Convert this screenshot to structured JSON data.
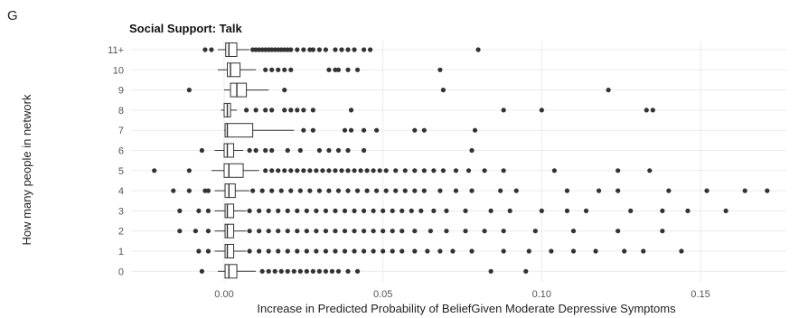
{
  "panel_letter": "G",
  "chart_data": {
    "type": "boxplot",
    "orientation": "horizontal",
    "title": "Social Support: Talk",
    "xlabel": "Increase in Predicted Probability of BeliefGiven Moderate Depressive Symptoms",
    "ylabel": "How many people in network",
    "xlim": [
      -0.025,
      0.175
    ],
    "xticks": [
      0.0,
      0.05,
      0.1,
      0.15
    ],
    "xtick_labels": [
      "0.00",
      "0.05",
      "0.10",
      "0.15"
    ],
    "grid": true,
    "categories": [
      "11+",
      "10",
      "9",
      "8",
      "7",
      "6",
      "5",
      "4",
      "3",
      "2",
      "1",
      "0"
    ],
    "boxes": [
      {
        "q1": 0.0005,
        "median": 0.0015,
        "q3": 0.004,
        "whisker_low": -0.002,
        "whisker_high": 0.008,
        "outliers": [
          -0.006,
          -0.004,
          0.009,
          0.01,
          0.011,
          0.012,
          0.013,
          0.014,
          0.015,
          0.016,
          0.017,
          0.018,
          0.019,
          0.02,
          0.021,
          0.023,
          0.025,
          0.027,
          0.028,
          0.03,
          0.032,
          0.035,
          0.037,
          0.039,
          0.041,
          0.044,
          0.046,
          0.08
        ]
      },
      {
        "q1": 0.001,
        "median": 0.002,
        "q3": 0.005,
        "whisker_low": -0.002,
        "whisker_high": 0.01,
        "outliers": [
          0.013,
          0.015,
          0.017,
          0.019,
          0.021,
          0.033,
          0.035,
          0.036,
          0.039,
          0.042,
          0.068
        ]
      },
      {
        "q1": 0.002,
        "median": 0.004,
        "q3": 0.007,
        "whisker_low": 0.0,
        "whisker_high": 0.014,
        "outliers": [
          -0.011,
          0.019,
          0.069,
          0.121
        ]
      },
      {
        "q1": 0.0,
        "median": 0.001,
        "q3": 0.002,
        "whisker_low": -0.001,
        "whisker_high": 0.004,
        "outliers": [
          0.007,
          0.01,
          0.013,
          0.015,
          0.019,
          0.021,
          0.023,
          0.025,
          0.028,
          0.04,
          0.088,
          0.1,
          0.133,
          0.135
        ]
      },
      {
        "q1": 0.0003,
        "median": 0.001,
        "q3": 0.009,
        "whisker_low": 0.0,
        "whisker_high": 0.022,
        "outliers": [
          0.025,
          0.028,
          0.038,
          0.04,
          0.044,
          0.048,
          0.06,
          0.063,
          0.079
        ]
      },
      {
        "q1": 0.0,
        "median": 0.001,
        "q3": 0.003,
        "whisker_low": -0.003,
        "whisker_high": 0.006,
        "outliers": [
          -0.007,
          0.008,
          0.01,
          0.013,
          0.015,
          0.02,
          0.024,
          0.03,
          0.033,
          0.036,
          0.039,
          0.044,
          0.078
        ]
      },
      {
        "q1": 0.0,
        "median": 0.0015,
        "q3": 0.006,
        "whisker_low": -0.004,
        "whisker_high": 0.011,
        "outliers": [
          -0.022,
          -0.011,
          0.013,
          0.015,
          0.017,
          0.019,
          0.021,
          0.023,
          0.025,
          0.027,
          0.029,
          0.031,
          0.033,
          0.035,
          0.037,
          0.039,
          0.041,
          0.043,
          0.045,
          0.047,
          0.049,
          0.051,
          0.054,
          0.057,
          0.06,
          0.063,
          0.066,
          0.069,
          0.073,
          0.077,
          0.082,
          0.088,
          0.104,
          0.124,
          0.134
        ]
      },
      {
        "q1": 0.0003,
        "median": 0.0015,
        "q3": 0.0035,
        "whisker_low": -0.003,
        "whisker_high": 0.008,
        "outliers": [
          -0.016,
          -0.011,
          -0.006,
          -0.005,
          0.009,
          0.012,
          0.015,
          0.018,
          0.021,
          0.024,
          0.027,
          0.03,
          0.033,
          0.036,
          0.039,
          0.042,
          0.045,
          0.048,
          0.051,
          0.054,
          0.057,
          0.06,
          0.063,
          0.068,
          0.073,
          0.078,
          0.087,
          0.092,
          0.108,
          0.118,
          0.124,
          0.14,
          0.152,
          0.164,
          0.171
        ]
      },
      {
        "q1": 0.0003,
        "median": 0.001,
        "q3": 0.003,
        "whisker_low": -0.003,
        "whisker_high": 0.007,
        "outliers": [
          -0.014,
          -0.008,
          -0.005,
          0.008,
          0.011,
          0.014,
          0.017,
          0.02,
          0.023,
          0.026,
          0.029,
          0.032,
          0.035,
          0.038,
          0.041,
          0.044,
          0.047,
          0.05,
          0.053,
          0.056,
          0.059,
          0.062,
          0.066,
          0.07,
          0.076,
          0.084,
          0.09,
          0.1,
          0.108,
          0.114,
          0.128,
          0.138,
          0.146,
          0.158
        ]
      },
      {
        "q1": 0.0003,
        "median": 0.001,
        "q3": 0.003,
        "whisker_low": -0.003,
        "whisker_high": 0.007,
        "outliers": [
          -0.014,
          -0.009,
          -0.005,
          0.008,
          0.011,
          0.014,
          0.017,
          0.02,
          0.023,
          0.026,
          0.029,
          0.032,
          0.035,
          0.038,
          0.041,
          0.044,
          0.047,
          0.05,
          0.053,
          0.056,
          0.06,
          0.065,
          0.07,
          0.076,
          0.082,
          0.088,
          0.098,
          0.11,
          0.124,
          0.138
        ]
      },
      {
        "q1": 0.0003,
        "median": 0.001,
        "q3": 0.003,
        "whisker_low": -0.003,
        "whisker_high": 0.007,
        "outliers": [
          -0.008,
          -0.005,
          0.008,
          0.011,
          0.014,
          0.017,
          0.02,
          0.023,
          0.026,
          0.029,
          0.032,
          0.035,
          0.038,
          0.041,
          0.044,
          0.047,
          0.05,
          0.053,
          0.056,
          0.06,
          0.064,
          0.068,
          0.072,
          0.078,
          0.088,
          0.096,
          0.103,
          0.11,
          0.117,
          0.126,
          0.132,
          0.144
        ]
      },
      {
        "q1": 0.0003,
        "median": 0.0015,
        "q3": 0.004,
        "whisker_low": -0.002,
        "whisker_high": 0.01,
        "outliers": [
          -0.007,
          0.012,
          0.014,
          0.016,
          0.018,
          0.02,
          0.022,
          0.024,
          0.026,
          0.028,
          0.03,
          0.032,
          0.034,
          0.036,
          0.039,
          0.042,
          0.084,
          0.095
        ]
      }
    ]
  }
}
